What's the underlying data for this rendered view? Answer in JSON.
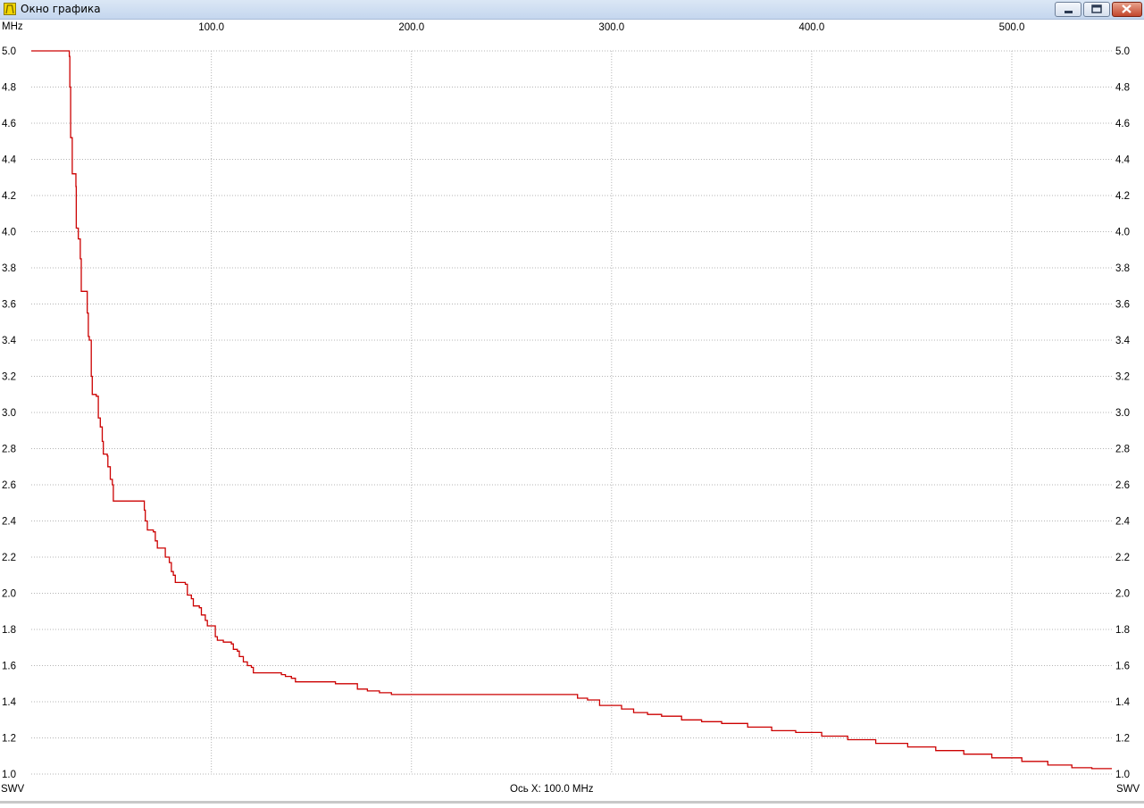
{
  "window": {
    "title": "Окно графика",
    "icons": {
      "app": "chart-app-icon",
      "minimize": "minimize-icon",
      "maximize": "maximize-icon",
      "close": "close-icon"
    }
  },
  "colors": {
    "series": "#cc0000",
    "grid": "#b4b4b4",
    "titlebar": "#c4d6ee"
  },
  "chart_data": {
    "type": "line",
    "y_unit_label": "MHz",
    "y_axis_label_left": "SWV",
    "y_axis_label_right": "SWV",
    "x_axis_caption": "Ось X: 100.0 MHz",
    "xlim": [
      10,
      550
    ],
    "ylim": [
      1.0,
      5.0
    ],
    "x_ticks": [
      "100.0",
      "200.0",
      "300.0",
      "400.0",
      "500.0"
    ],
    "x_tick_values": [
      100,
      200,
      300,
      400,
      500
    ],
    "y_ticks": [
      "5.0",
      "4.8",
      "4.6",
      "4.4",
      "4.2",
      "4.0",
      "3.8",
      "3.6",
      "3.4",
      "3.2",
      "3.0",
      "2.8",
      "2.6",
      "2.4",
      "2.2",
      "2.0",
      "1.8",
      "1.6",
      "1.4",
      "1.2",
      "1.0"
    ],
    "y_tick_values": [
      5.0,
      4.8,
      4.6,
      4.4,
      4.2,
      4.0,
      3.8,
      3.6,
      3.4,
      3.2,
      3.0,
      2.8,
      2.6,
      2.4,
      2.2,
      2.0,
      1.8,
      1.6,
      1.4,
      1.2,
      1.0
    ],
    "grid": true,
    "series": [
      {
        "color": "#cc0000",
        "points": [
          [
            10.0,
            5.0
          ],
          [
            28.8,
            5.0
          ],
          [
            29.0,
            4.97
          ],
          [
            29.3,
            4.8
          ],
          [
            29.7,
            4.52
          ],
          [
            30.5,
            4.32
          ],
          [
            32.0,
            4.32
          ],
          [
            32.3,
            4.25
          ],
          [
            32.5,
            4.02
          ],
          [
            33.5,
            3.96
          ],
          [
            34.5,
            3.85
          ],
          [
            35.0,
            3.67
          ],
          [
            37.5,
            3.67
          ],
          [
            38.0,
            3.55
          ],
          [
            38.5,
            3.42
          ],
          [
            39.0,
            3.4
          ],
          [
            40.0,
            3.2
          ],
          [
            40.5,
            3.1
          ],
          [
            42.5,
            3.09
          ],
          [
            43.5,
            2.97
          ],
          [
            44.5,
            2.92
          ],
          [
            45.5,
            2.84
          ],
          [
            46.0,
            2.77
          ],
          [
            48.0,
            2.76
          ],
          [
            48.3,
            2.7
          ],
          [
            49.5,
            2.63
          ],
          [
            50.5,
            2.6
          ],
          [
            51.0,
            2.51
          ],
          [
            66.0,
            2.51
          ],
          [
            66.5,
            2.46
          ],
          [
            67.0,
            2.4
          ],
          [
            68.0,
            2.35
          ],
          [
            71.0,
            2.34
          ],
          [
            72.0,
            2.29
          ],
          [
            73.0,
            2.25
          ],
          [
            76.0,
            2.25
          ],
          [
            77.0,
            2.2
          ],
          [
            79.0,
            2.17
          ],
          [
            80.0,
            2.12
          ],
          [
            81.0,
            2.1
          ],
          [
            82.0,
            2.06
          ],
          [
            87.0,
            2.05
          ],
          [
            88.0,
            1.99
          ],
          [
            90.0,
            1.97
          ],
          [
            91.0,
            1.93
          ],
          [
            94.0,
            1.92
          ],
          [
            95.0,
            1.88
          ],
          [
            97.0,
            1.85
          ],
          [
            98.0,
            1.82
          ],
          [
            101.0,
            1.82
          ],
          [
            102.0,
            1.76
          ],
          [
            103.0,
            1.74
          ],
          [
            106.0,
            1.73
          ],
          [
            110.0,
            1.72
          ],
          [
            111.0,
            1.69
          ],
          [
            113.0,
            1.68
          ],
          [
            114.0,
            1.65
          ],
          [
            116.0,
            1.62
          ],
          [
            118.0,
            1.6
          ],
          [
            120.0,
            1.59
          ],
          [
            121.0,
            1.56
          ],
          [
            133.0,
            1.56
          ],
          [
            135.0,
            1.55
          ],
          [
            137.0,
            1.54
          ],
          [
            140.0,
            1.53
          ],
          [
            142.0,
            1.51
          ],
          [
            155.0,
            1.51
          ],
          [
            162.0,
            1.5
          ],
          [
            173.0,
            1.47
          ],
          [
            178.0,
            1.46
          ],
          [
            184.0,
            1.45
          ],
          [
            190.0,
            1.44
          ],
          [
            278.0,
            1.44
          ],
          [
            283.0,
            1.42
          ],
          [
            288.0,
            1.41
          ],
          [
            294.0,
            1.38
          ],
          [
            300.0,
            1.38
          ],
          [
            305.0,
            1.36
          ],
          [
            311.0,
            1.34
          ],
          [
            318.0,
            1.33
          ],
          [
            325.0,
            1.32
          ],
          [
            335.0,
            1.3
          ],
          [
            345.0,
            1.29
          ],
          [
            355.0,
            1.28
          ],
          [
            368.0,
            1.26
          ],
          [
            380.0,
            1.24
          ],
          [
            392.0,
            1.23
          ],
          [
            405.0,
            1.21
          ],
          [
            418.0,
            1.19
          ],
          [
            432.0,
            1.17
          ],
          [
            448.0,
            1.15
          ],
          [
            462.0,
            1.13
          ],
          [
            476.0,
            1.11
          ],
          [
            490.0,
            1.09
          ],
          [
            505.0,
            1.07
          ],
          [
            518.0,
            1.05
          ],
          [
            530.0,
            1.035
          ],
          [
            540.0,
            1.03
          ],
          [
            550.0,
            1.03
          ]
        ]
      }
    ]
  }
}
